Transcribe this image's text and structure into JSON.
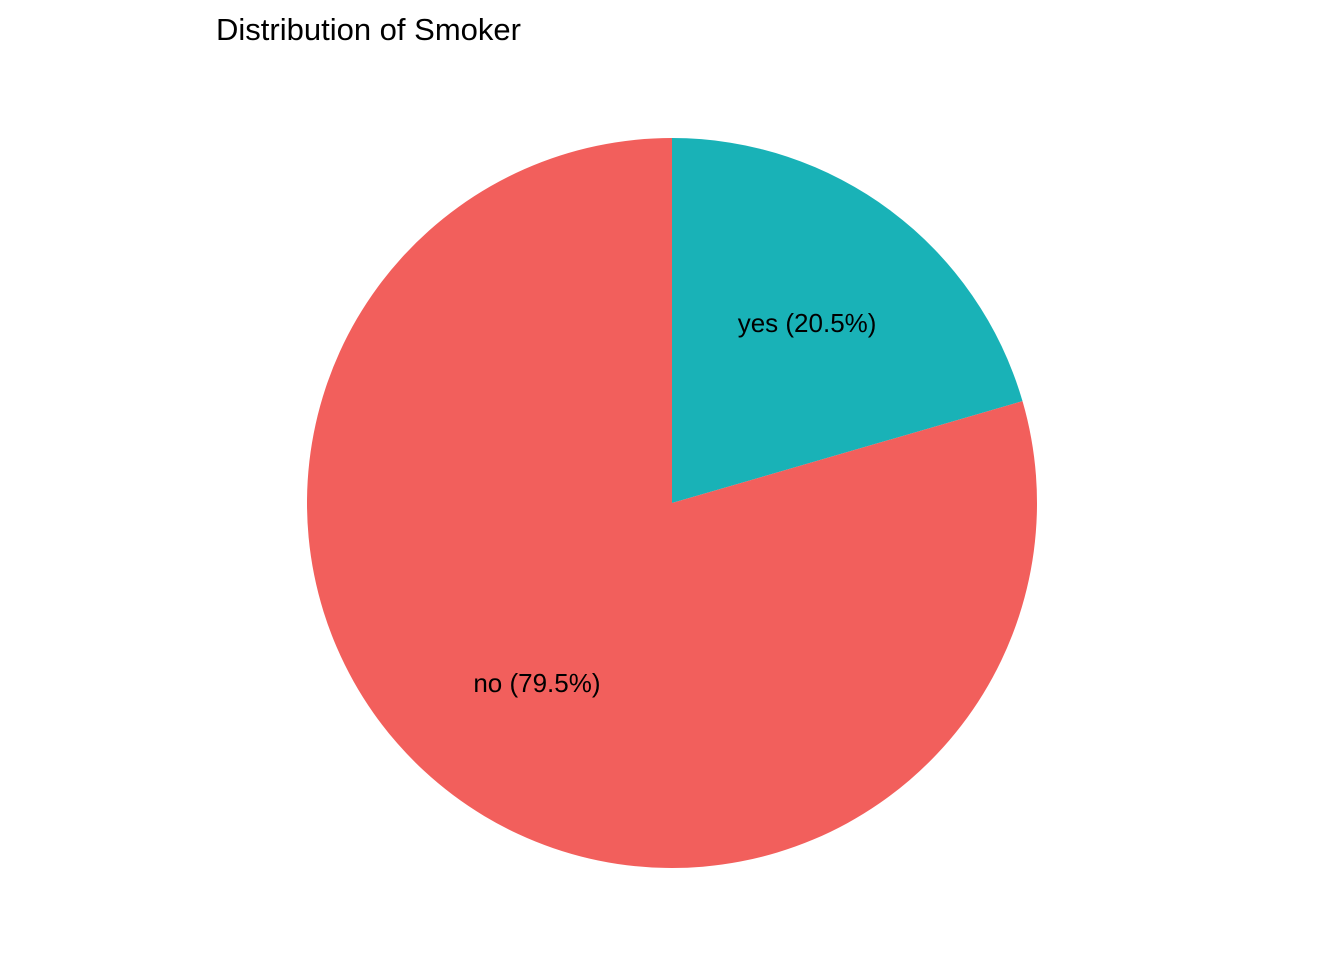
{
  "chart_data": {
    "type": "pie",
    "title": "Distribution of Smoker",
    "start_angle": "12 o'clock",
    "direction": "clockwise",
    "slices": [
      {
        "category": "yes",
        "percent": 20.5,
        "label": "yes (20.5%)",
        "color": "#19B2B7"
      },
      {
        "category": "no",
        "percent": 79.5,
        "label": "no (79.5%)",
        "color": "#F25F5C"
      }
    ]
  }
}
